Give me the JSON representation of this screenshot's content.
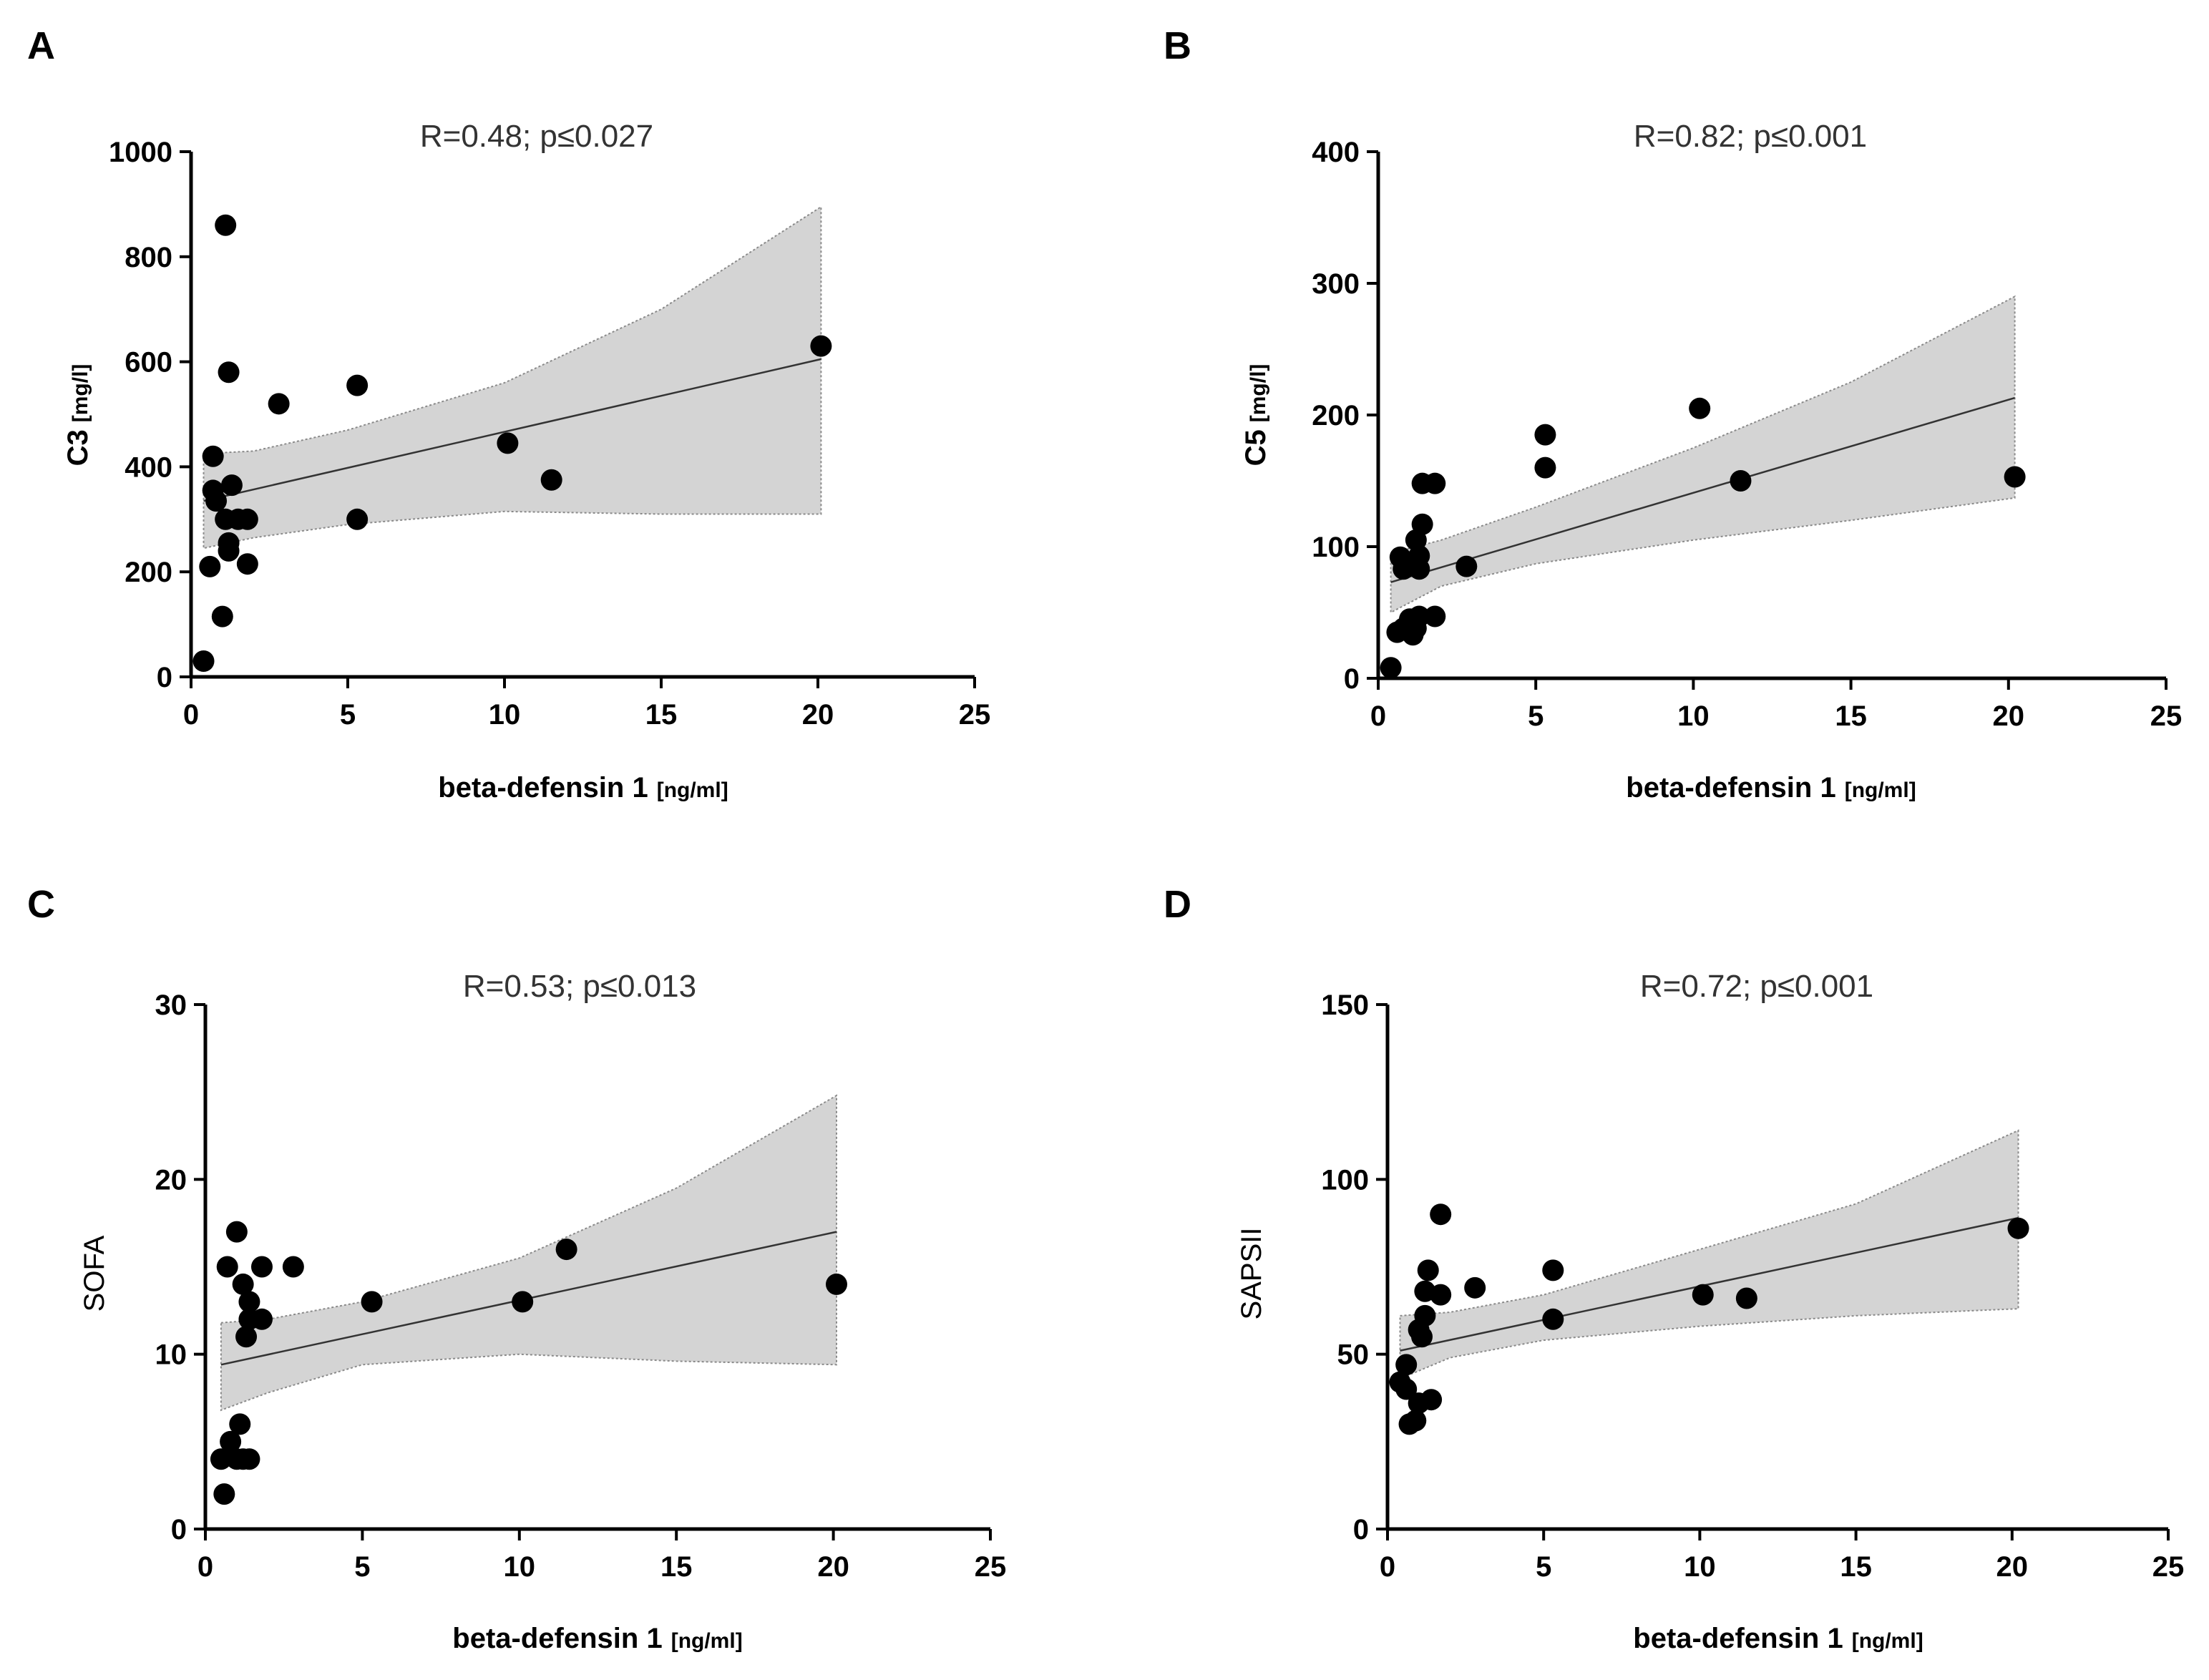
{
  "chart_data": [
    {
      "panel": "A",
      "type": "scatter",
      "title": "R=0.48; p≤0.027",
      "xlabel": "beta-defensin 1",
      "xlabel_unit": "[ng/ml]",
      "ylabel": "C3",
      "ylabel_unit": "[mg/l]",
      "xlim": [
        0,
        25
      ],
      "ylim": [
        0,
        1000
      ],
      "xticks": [
        0,
        5,
        10,
        15,
        20,
        25
      ],
      "yticks": [
        0,
        200,
        400,
        600,
        800,
        1000
      ],
      "points": [
        [
          0.4,
          30
        ],
        [
          0.6,
          210
        ],
        [
          0.7,
          420
        ],
        [
          0.7,
          355
        ],
        [
          0.8,
          335
        ],
        [
          1.0,
          115
        ],
        [
          1.1,
          300
        ],
        [
          1.1,
          860
        ],
        [
          1.2,
          580
        ],
        [
          1.2,
          255
        ],
        [
          1.2,
          240
        ],
        [
          1.3,
          365
        ],
        [
          1.5,
          300
        ],
        [
          1.8,
          300
        ],
        [
          1.8,
          215
        ],
        [
          2.8,
          520
        ],
        [
          5.3,
          555
        ],
        [
          5.3,
          300
        ],
        [
          10.1,
          445
        ],
        [
          11.5,
          375
        ],
        [
          20.1,
          630
        ]
      ],
      "regression": {
        "x": [
          0.4,
          20.1
        ],
        "y": [
          335,
          605
        ]
      },
      "ci_upper": [
        [
          0.4,
          425
        ],
        [
          2,
          430
        ],
        [
          5,
          470
        ],
        [
          10,
          560
        ],
        [
          15,
          700
        ],
        [
          20.1,
          895
        ]
      ],
      "ci_lower": [
        [
          0.4,
          245
        ],
        [
          2,
          265
        ],
        [
          5,
          290
        ],
        [
          10,
          315
        ],
        [
          15,
          310
        ],
        [
          20.1,
          310
        ]
      ]
    },
    {
      "panel": "B",
      "type": "scatter",
      "title": "R=0.82; p≤0.001",
      "xlabel": "beta-defensin 1",
      "xlabel_unit": "[ng/ml]",
      "ylabel": "C5",
      "ylabel_unit": "[mg/l]",
      "xlim": [
        0,
        25
      ],
      "ylim": [
        0,
        400
      ],
      "xticks": [
        0,
        5,
        10,
        15,
        20,
        25
      ],
      "yticks": [
        0,
        100,
        200,
        300,
        400
      ],
      "points": [
        [
          0.4,
          8
        ],
        [
          0.6,
          35
        ],
        [
          0.7,
          92
        ],
        [
          0.8,
          38
        ],
        [
          0.8,
          83
        ],
        [
          1.0,
          45
        ],
        [
          1.0,
          87
        ],
        [
          1.1,
          33
        ],
        [
          1.2,
          38
        ],
        [
          1.2,
          105
        ],
        [
          1.3,
          47
        ],
        [
          1.3,
          83
        ],
        [
          1.3,
          93
        ],
        [
          1.4,
          148
        ],
        [
          1.4,
          117
        ],
        [
          1.8,
          148
        ],
        [
          1.8,
          47
        ],
        [
          2.8,
          85
        ],
        [
          5.3,
          185
        ],
        [
          5.3,
          160
        ],
        [
          10.2,
          205
        ],
        [
          11.5,
          150
        ],
        [
          20.2,
          153
        ]
      ],
      "regression": {
        "x": [
          0.4,
          20.2
        ],
        "y": [
          73,
          213
        ]
      },
      "ci_upper": [
        [
          0.4,
          95
        ],
        [
          2,
          105
        ],
        [
          5,
          130
        ],
        [
          10,
          175
        ],
        [
          15,
          225
        ],
        [
          20.2,
          290
        ]
      ],
      "ci_lower": [
        [
          0.4,
          50
        ],
        [
          2,
          70
        ],
        [
          5,
          87
        ],
        [
          10,
          105
        ],
        [
          15,
          120
        ],
        [
          20.2,
          137
        ]
      ]
    },
    {
      "panel": "C",
      "type": "scatter",
      "title": "R=0.53; p≤0.013",
      "xlabel": "beta-defensin 1",
      "xlabel_unit": "[ng/ml]",
      "ylabel": "SOFA",
      "ylabel_unit": "",
      "xlim": [
        0,
        25
      ],
      "ylim": [
        0,
        30
      ],
      "xticks": [
        0,
        5,
        10,
        15,
        20,
        25
      ],
      "yticks": [
        0,
        10,
        20,
        30
      ],
      "points": [
        [
          0.5,
          4
        ],
        [
          0.6,
          2
        ],
        [
          0.7,
          15
        ],
        [
          0.8,
          5
        ],
        [
          1.0,
          4
        ],
        [
          1.0,
          17
        ],
        [
          1.1,
          6
        ],
        [
          1.2,
          14
        ],
        [
          1.2,
          4
        ],
        [
          1.3,
          11
        ],
        [
          1.4,
          4
        ],
        [
          1.4,
          13
        ],
        [
          1.4,
          12
        ],
        [
          1.8,
          15
        ],
        [
          1.8,
          12
        ],
        [
          2.8,
          15
        ],
        [
          5.3,
          13
        ],
        [
          10.1,
          13
        ],
        [
          11.5,
          16
        ],
        [
          20.1,
          14
        ]
      ],
      "regression": {
        "x": [
          0.5,
          20.1
        ],
        "y": [
          9.4,
          17.0
        ]
      },
      "ci_upper": [
        [
          0.5,
          11.8
        ],
        [
          2,
          12.0
        ],
        [
          5,
          13.0
        ],
        [
          10,
          15.5
        ],
        [
          15,
          19.5
        ],
        [
          20.1,
          24.8
        ]
      ],
      "ci_lower": [
        [
          0.5,
          6.8
        ],
        [
          2,
          7.8
        ],
        [
          5,
          9.4
        ],
        [
          10,
          10.0
        ],
        [
          15,
          9.6
        ],
        [
          20.1,
          9.4
        ]
      ]
    },
    {
      "panel": "D",
      "type": "scatter",
      "title": "R=0.72; p≤0.001",
      "xlabel": "beta-defensin 1",
      "xlabel_unit": "[ng/ml]",
      "ylabel": "SAPSII",
      "ylabel_unit": "",
      "xlim": [
        0,
        25
      ],
      "ylim": [
        0,
        150
      ],
      "xticks": [
        0,
        5,
        10,
        15,
        20,
        25
      ],
      "yticks": [
        0,
        50,
        100,
        150
      ],
      "points": [
        [
          0.4,
          42
        ],
        [
          0.6,
          47
        ],
        [
          0.6,
          40
        ],
        [
          0.7,
          30
        ],
        [
          0.9,
          31
        ],
        [
          1.0,
          36
        ],
        [
          1.0,
          57
        ],
        [
          1.1,
          55
        ],
        [
          1.2,
          61
        ],
        [
          1.2,
          68
        ],
        [
          1.3,
          74
        ],
        [
          1.4,
          37
        ],
        [
          1.7,
          67
        ],
        [
          1.7,
          90
        ],
        [
          2.8,
          69
        ],
        [
          5.3,
          74
        ],
        [
          5.3,
          60
        ],
        [
          10.1,
          67
        ],
        [
          11.5,
          66
        ],
        [
          20.2,
          86
        ]
      ],
      "regression": {
        "x": [
          0.4,
          20.2
        ],
        "y": [
          51,
          89
        ]
      },
      "ci_upper": [
        [
          0.4,
          61
        ],
        [
          2,
          62
        ],
        [
          5,
          67
        ],
        [
          10,
          80
        ],
        [
          15,
          93
        ],
        [
          20.2,
          114
        ]
      ],
      "ci_lower": [
        [
          0.4,
          43
        ],
        [
          2,
          49
        ],
        [
          5,
          54
        ],
        [
          10,
          58
        ],
        [
          15,
          61
        ],
        [
          20.2,
          63
        ]
      ]
    }
  ]
}
